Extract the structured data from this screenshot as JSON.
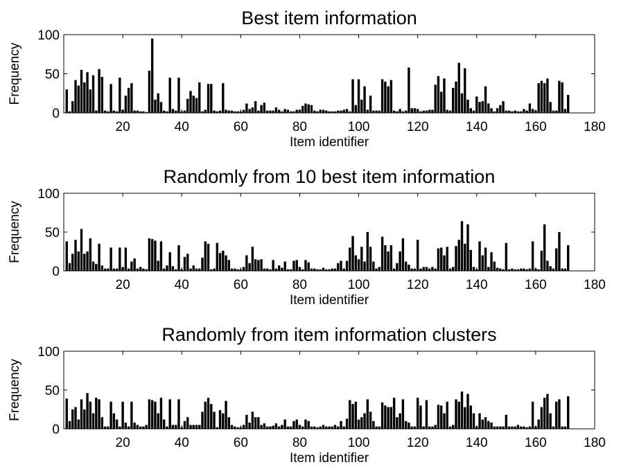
{
  "chart_data": [
    {
      "type": "bar",
      "title": "Best item information",
      "xlabel": "Item identifier",
      "ylabel": "Frequency",
      "xlim": [
        0,
        180
      ],
      "ylim": [
        0,
        100
      ],
      "xticks": [
        20,
        40,
        60,
        80,
        100,
        120,
        140,
        160,
        180
      ],
      "yticks": [
        0,
        50,
        100
      ],
      "x": [
        1,
        2,
        3,
        4,
        5,
        6,
        7,
        8,
        9,
        10,
        11,
        12,
        13,
        14,
        15,
        16,
        17,
        18,
        19,
        20,
        21,
        22,
        23,
        24,
        25,
        26,
        27,
        28,
        29,
        30,
        31,
        32,
        33,
        34,
        35,
        36,
        37,
        38,
        39,
        40,
        41,
        42,
        43,
        44,
        45,
        46,
        47,
        48,
        49,
        50,
        51,
        52,
        53,
        54,
        55,
        56,
        57,
        58,
        59,
        60,
        61,
        62,
        63,
        64,
        65,
        66,
        67,
        68,
        69,
        70,
        71,
        72,
        73,
        74,
        75,
        76,
        77,
        78,
        79,
        80,
        81,
        82,
        83,
        84,
        85,
        86,
        87,
        88,
        89,
        90,
        91,
        92,
        93,
        94,
        95,
        96,
        97,
        98,
        99,
        100,
        101,
        102,
        103,
        104,
        105,
        106,
        107,
        108,
        109,
        110,
        111,
        112,
        113,
        114,
        115,
        116,
        117,
        118,
        119,
        120,
        121,
        122,
        123,
        124,
        125,
        126,
        127,
        128,
        129,
        130,
        131,
        132,
        133,
        134,
        135,
        136,
        137,
        138,
        139,
        140,
        141,
        142,
        143,
        144,
        145,
        146,
        147,
        148,
        149,
        150,
        151,
        152,
        153,
        154,
        155,
        156,
        157,
        158,
        159,
        160,
        161,
        162,
        163,
        164,
        165,
        166,
        167,
        168,
        169,
        170,
        171
      ],
      "values": [
        30,
        2,
        15,
        42,
        35,
        55,
        39,
        52,
        30,
        48,
        3,
        56,
        46,
        3,
        2,
        37,
        3,
        2,
        45,
        4,
        22,
        32,
        38,
        3,
        3,
        2,
        2,
        1,
        54,
        95,
        17,
        25,
        14,
        3,
        2,
        45,
        5,
        3,
        45,
        2,
        3,
        18,
        28,
        22,
        19,
        39,
        2,
        4,
        37,
        37,
        3,
        2,
        3,
        38,
        4,
        3,
        3,
        2,
        2,
        2,
        4,
        12,
        5,
        7,
        15,
        3,
        10,
        13,
        3,
        3,
        3,
        7,
        4,
        2,
        5,
        4,
        2,
        2,
        4,
        4,
        9,
        12,
        11,
        10,
        3,
        2,
        4,
        4,
        3,
        2,
        2,
        2,
        3,
        3,
        4,
        5,
        2,
        43,
        10,
        43,
        17,
        34,
        4,
        22,
        3,
        3,
        3,
        43,
        40,
        34,
        42,
        3,
        2,
        5,
        2,
        3,
        58,
        6,
        6,
        5,
        2,
        3,
        3,
        4,
        4,
        36,
        47,
        27,
        44,
        4,
        3,
        32,
        40,
        64,
        25,
        57,
        17,
        6,
        3,
        21,
        14,
        15,
        34,
        12,
        6,
        2,
        6,
        10,
        15,
        3,
        3,
        2,
        3,
        2,
        2,
        5,
        3,
        12,
        5,
        3,
        38,
        41,
        38,
        44,
        14,
        3,
        3,
        41,
        39,
        5,
        23
      ]
    },
    {
      "type": "bar",
      "title": "Randomly from 10 best item information",
      "xlabel": "Item identifier",
      "ylabel": "Frequency",
      "xlim": [
        0,
        180
      ],
      "ylim": [
        0,
        100
      ],
      "xticks": [
        20,
        40,
        60,
        80,
        100,
        120,
        140,
        160,
        180
      ],
      "yticks": [
        0,
        50,
        100
      ],
      "x": [
        1,
        2,
        3,
        4,
        5,
        6,
        7,
        8,
        9,
        10,
        11,
        12,
        13,
        14,
        15,
        16,
        17,
        18,
        19,
        20,
        21,
        22,
        23,
        24,
        25,
        26,
        27,
        28,
        29,
        30,
        31,
        32,
        33,
        34,
        35,
        36,
        37,
        38,
        39,
        40,
        41,
        42,
        43,
        44,
        45,
        46,
        47,
        48,
        49,
        50,
        51,
        52,
        53,
        54,
        55,
        56,
        57,
        58,
        59,
        60,
        61,
        62,
        63,
        64,
        65,
        66,
        67,
        68,
        69,
        70,
        71,
        72,
        73,
        74,
        75,
        76,
        77,
        78,
        79,
        80,
        81,
        82,
        83,
        84,
        85,
        86,
        87,
        88,
        89,
        90,
        91,
        92,
        93,
        94,
        95,
        96,
        97,
        98,
        99,
        100,
        101,
        102,
        103,
        104,
        105,
        106,
        107,
        108,
        109,
        110,
        111,
        112,
        113,
        114,
        115,
        116,
        117,
        118,
        119,
        120,
        121,
        122,
        123,
        124,
        125,
        126,
        127,
        128,
        129,
        130,
        131,
        132,
        133,
        134,
        135,
        136,
        137,
        138,
        139,
        140,
        141,
        142,
        143,
        144,
        145,
        146,
        147,
        148,
        149,
        150,
        151,
        152,
        153,
        154,
        155,
        156,
        157,
        158,
        159,
        160,
        161,
        162,
        163,
        164,
        165,
        166,
        167,
        168,
        169,
        170,
        171
      ],
      "values": [
        38,
        10,
        22,
        40,
        25,
        54,
        22,
        25,
        42,
        12,
        9,
        35,
        7,
        3,
        3,
        30,
        3,
        3,
        30,
        5,
        30,
        3,
        12,
        16,
        3,
        5,
        3,
        2,
        42,
        41,
        39,
        13,
        38,
        3,
        7,
        24,
        6,
        2,
        33,
        2,
        18,
        22,
        3,
        7,
        3,
        3,
        17,
        38,
        35,
        2,
        3,
        36,
        23,
        26,
        20,
        14,
        3,
        3,
        2,
        2,
        5,
        20,
        10,
        31,
        15,
        14,
        15,
        3,
        3,
        2,
        14,
        3,
        7,
        4,
        12,
        2,
        2,
        13,
        14,
        5,
        2,
        14,
        11,
        3,
        3,
        2,
        2,
        4,
        2,
        2,
        3,
        3,
        10,
        13,
        3,
        13,
        30,
        45,
        20,
        15,
        31,
        12,
        50,
        31,
        12,
        3,
        5,
        44,
        33,
        25,
        33,
        3,
        10,
        25,
        42,
        12,
        8,
        3,
        3,
        40,
        3,
        5,
        5,
        3,
        5,
        3,
        29,
        30,
        20,
        31,
        3,
        5,
        32,
        40,
        64,
        35,
        60,
        27,
        5,
        2,
        38,
        20,
        30,
        5,
        24,
        12,
        4,
        3,
        2,
        36,
        2,
        3,
        2,
        2,
        3,
        3,
        2,
        3,
        38,
        3,
        2,
        26,
        60,
        13,
        6,
        3,
        29,
        50,
        3,
        3,
        33
      ]
    },
    {
      "type": "bar",
      "title": "Randomly from item information clusters",
      "xlabel": "Item identifier",
      "ylabel": "Frequency",
      "xlim": [
        0,
        180
      ],
      "ylim": [
        0,
        100
      ],
      "xticks": [
        20,
        40,
        60,
        80,
        100,
        120,
        140,
        160,
        180
      ],
      "yticks": [
        0,
        50,
        100
      ],
      "x": [
        1,
        2,
        3,
        4,
        5,
        6,
        7,
        8,
        9,
        10,
        11,
        12,
        13,
        14,
        15,
        16,
        17,
        18,
        19,
        20,
        21,
        22,
        23,
        24,
        25,
        26,
        27,
        28,
        29,
        30,
        31,
        32,
        33,
        34,
        35,
        36,
        37,
        38,
        39,
        40,
        41,
        42,
        43,
        44,
        45,
        46,
        47,
        48,
        49,
        50,
        51,
        52,
        53,
        54,
        55,
        56,
        57,
        58,
        59,
        60,
        61,
        62,
        63,
        64,
        65,
        66,
        67,
        68,
        69,
        70,
        71,
        72,
        73,
        74,
        75,
        76,
        77,
        78,
        79,
        80,
        81,
        82,
        83,
        84,
        85,
        86,
        87,
        88,
        89,
        90,
        91,
        92,
        93,
        94,
        95,
        96,
        97,
        98,
        99,
        100,
        101,
        102,
        103,
        104,
        105,
        106,
        107,
        108,
        109,
        110,
        111,
        112,
        113,
        114,
        115,
        116,
        117,
        118,
        119,
        120,
        121,
        122,
        123,
        124,
        125,
        126,
        127,
        128,
        129,
        130,
        131,
        132,
        133,
        134,
        135,
        136,
        137,
        138,
        139,
        140,
        141,
        142,
        143,
        144,
        145,
        146,
        147,
        148,
        149,
        150,
        151,
        152,
        153,
        154,
        155,
        156,
        157,
        158,
        159,
        160,
        161,
        162,
        163,
        164,
        165,
        166,
        167,
        168,
        169,
        170,
        171
      ],
      "values": [
        39,
        10,
        25,
        28,
        12,
        38,
        25,
        46,
        35,
        20,
        40,
        38,
        15,
        3,
        3,
        35,
        20,
        12,
        3,
        35,
        8,
        3,
        35,
        8,
        5,
        3,
        3,
        5,
        38,
        37,
        35,
        20,
        40,
        12,
        3,
        38,
        5,
        5,
        38,
        2,
        10,
        15,
        5,
        5,
        5,
        5,
        22,
        35,
        40,
        32,
        22,
        2,
        24,
        20,
        36,
        15,
        5,
        3,
        2,
        2,
        5,
        18,
        8,
        22,
        15,
        15,
        5,
        7,
        3,
        3,
        4,
        7,
        3,
        5,
        12,
        3,
        3,
        10,
        12,
        5,
        3,
        12,
        10,
        3,
        3,
        2,
        3,
        5,
        3,
        3,
        3,
        5,
        3,
        10,
        3,
        13,
        37,
        32,
        35,
        12,
        15,
        20,
        38,
        22,
        10,
        3,
        3,
        34,
        30,
        28,
        28,
        40,
        15,
        20,
        38,
        10,
        8,
        3,
        3,
        40,
        30,
        3,
        37,
        3,
        3,
        5,
        31,
        30,
        20,
        35,
        3,
        5,
        38,
        35,
        48,
        28,
        45,
        30,
        20,
        3,
        20,
        12,
        15,
        10,
        8,
        3,
        3,
        3,
        3,
        18,
        3,
        3,
        3,
        5,
        3,
        3,
        2,
        3,
        35,
        3,
        12,
        28,
        40,
        45,
        20,
        3,
        35,
        38,
        3,
        3,
        42
      ]
    }
  ]
}
